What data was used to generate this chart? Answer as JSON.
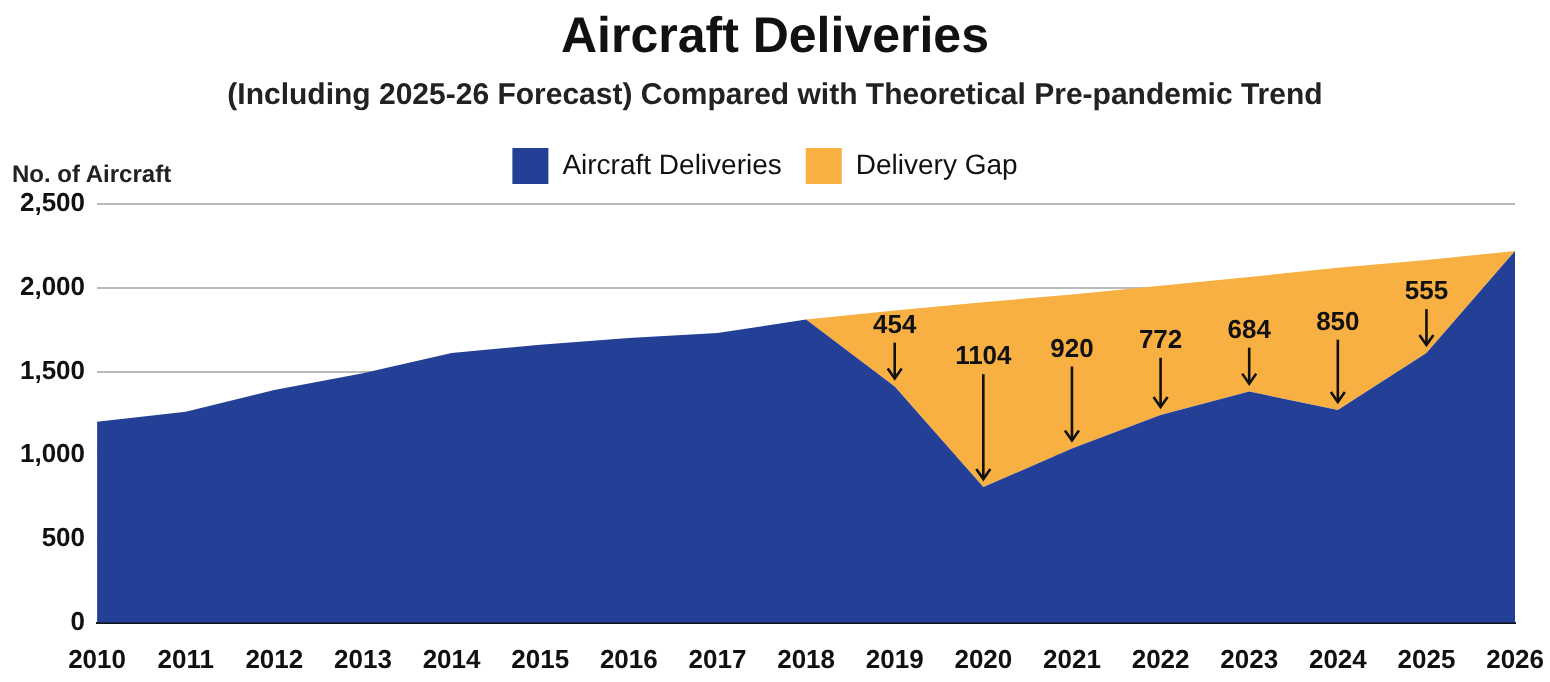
{
  "chart_data": {
    "type": "area",
    "title": "Aircraft Deliveries",
    "subtitle": "(Including 2025-26 Forecast) Compared with Theoretical Pre-pandemic Trend",
    "ylabel": "No. of Aircraft",
    "categories": [
      "2010",
      "2011",
      "2012",
      "2013",
      "2014",
      "2015",
      "2016",
      "2017",
      "2018",
      "2019",
      "2020",
      "2021",
      "2022",
      "2023",
      "2024",
      "2025",
      "2026"
    ],
    "stacked": true,
    "ylim": [
      0,
      2500
    ],
    "yticks": [
      0,
      {
        "value": 500,
        "label": "500"
      },
      {
        "value": 1000,
        "label": "1,000"
      },
      {
        "value": 1500,
        "label": "1,500"
      },
      {
        "value": 2000,
        "label": "2,000"
      },
      {
        "value": 2500,
        "label": "2,500"
      }
    ],
    "grid": "y",
    "legend": "top",
    "series": [
      {
        "name": "Aircraft Deliveries",
        "color": "#233f96",
        "values": [
          1200,
          1260,
          1390,
          1490,
          1610,
          1660,
          1700,
          1730,
          1810,
          1410,
          810,
          1040,
          1240,
          1380,
          1270,
          1610,
          2220
        ]
      },
      {
        "name": "Delivery Gap",
        "color": "#f9b043",
        "values": [
          null,
          null,
          null,
          null,
          null,
          null,
          null,
          null,
          0,
          454,
          1104,
          920,
          772,
          684,
          850,
          555,
          0
        ],
        "value_labels": [
          null,
          null,
          null,
          null,
          null,
          null,
          null,
          null,
          null,
          "454",
          "1104",
          "920",
          "772",
          "684",
          "850",
          "555",
          null
        ]
      }
    ]
  }
}
